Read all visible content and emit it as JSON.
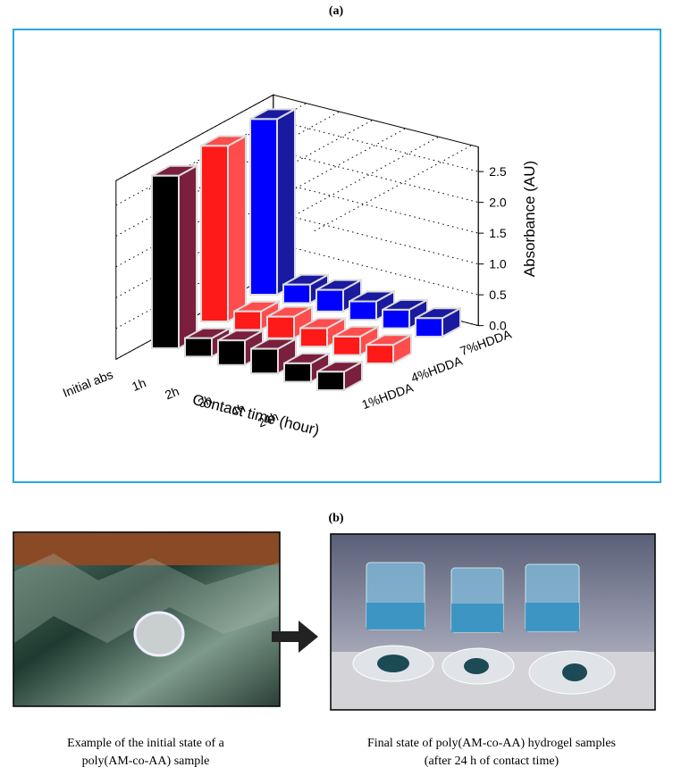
{
  "panel_labels": [
    "(a)",
    "(b)"
  ],
  "chart_data": {
    "type": "bar3d",
    "xlabel": "Contact time (hour)",
    "zlabel": "Absorbance (AU)",
    "categories": [
      "Initial abs",
      "1h",
      "2h",
      "3h",
      "4h",
      "24h"
    ],
    "series": [
      {
        "name": "1%HDDA",
        "color": "#000000",
        "side_color": "#7a1f3d",
        "values": [
          2.8,
          0.3,
          0.4,
          0.4,
          0.3,
          0.3
        ]
      },
      {
        "name": "4%HDDA",
        "color": "#ff1a1a",
        "side_color": "#ff4d4d",
        "values": [
          2.85,
          0.3,
          0.35,
          0.3,
          0.3,
          0.3
        ]
      },
      {
        "name": "7%HDDA",
        "color": "#0000ff",
        "side_color": "#1a1aa0",
        "values": [
          2.85,
          0.3,
          0.35,
          0.3,
          0.3,
          0.3
        ]
      }
    ],
    "zlim": [
      0,
      2.9
    ],
    "zticks": [
      {
        "value": 0,
        "label": "0.0"
      },
      0.5,
      {
        "value": 1,
        "label": "1.0"
      },
      1.5,
      {
        "value": 2,
        "label": "2.0"
      },
      2.5
    ],
    "grid": true
  },
  "captions": [
    [
      "Example of the initial state of a",
      "poly(AM-co-AA) sample"
    ],
    [
      "Final state of poly(AM-co-AA) hydrogel samples",
      "(after 24 h of contact time)"
    ]
  ]
}
